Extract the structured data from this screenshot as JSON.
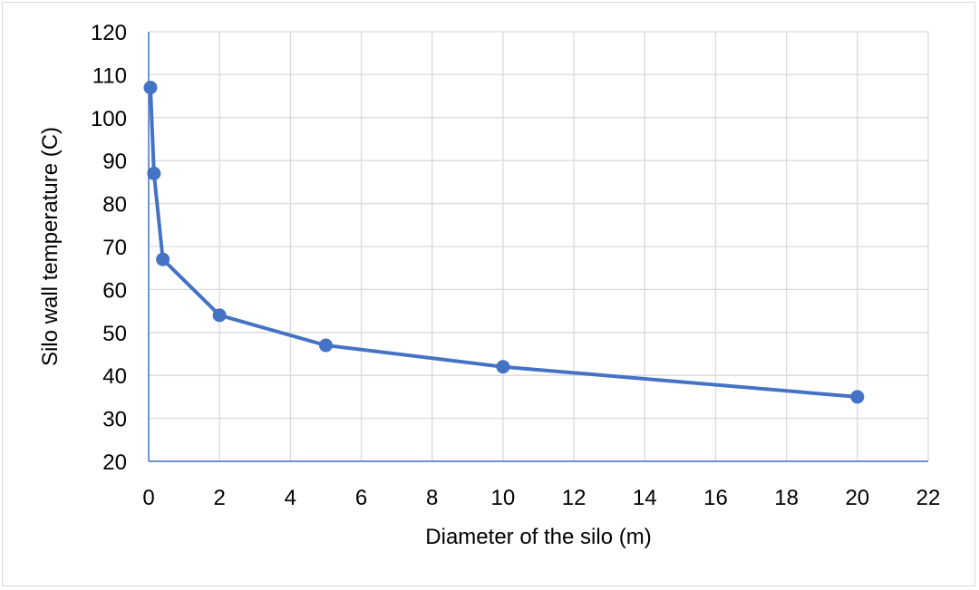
{
  "chart_data": {
    "type": "scatter",
    "title": "",
    "xlabel": "Diameter of the silo (m)",
    "ylabel": "Silo wall temperature (C)",
    "xlim": [
      0,
      22
    ],
    "ylim": [
      20,
      120
    ],
    "xticks": [
      0,
      2,
      4,
      6,
      8,
      10,
      12,
      14,
      16,
      18,
      20,
      22
    ],
    "yticks": [
      20,
      30,
      40,
      50,
      60,
      70,
      80,
      90,
      100,
      110,
      120
    ],
    "grid": true,
    "legend": "none",
    "series": [
      {
        "x": [
          0.05,
          0.15,
          0.4,
          2,
          5,
          10,
          20
        ],
        "y": [
          107,
          87,
          67,
          54,
          47,
          42,
          35
        ],
        "color": "#4472C4",
        "markers": true,
        "lines": true
      }
    ]
  }
}
